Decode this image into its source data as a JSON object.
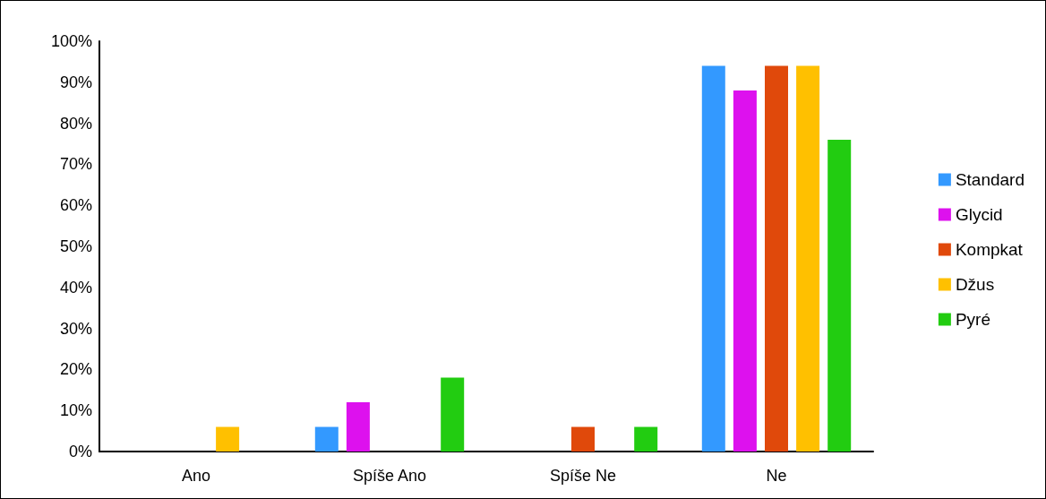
{
  "chart_data": {
    "type": "bar",
    "categories": [
      "Ano",
      "Spíše Ano",
      "Spíše Ne",
      "Ne"
    ],
    "series": [
      {
        "name": "Standard",
        "color": "#3399ff",
        "values": [
          0,
          6,
          0,
          94
        ]
      },
      {
        "name": "Glycid",
        "color": "#dd11ee",
        "values": [
          0,
          12,
          0,
          88
        ]
      },
      {
        "name": "Kompkat",
        "color": "#e0490b",
        "values": [
          0,
          0,
          6,
          94
        ]
      },
      {
        "name": "Džus",
        "color": "#ffc000",
        "values": [
          6,
          0,
          0,
          94
        ]
      },
      {
        "name": "Pyré",
        "color": "#22cc11",
        "values": [
          0,
          18,
          6,
          76
        ]
      }
    ],
    "ylim": [
      0,
      100
    ],
    "yticks": [
      {
        "value": 0,
        "label": "0%"
      },
      {
        "value": 10,
        "label": "10%"
      },
      {
        "value": 20,
        "label": "20%"
      },
      {
        "value": 30,
        "label": "30%"
      },
      {
        "value": 40,
        "label": "40%"
      },
      {
        "value": 50,
        "label": "50%"
      },
      {
        "value": 60,
        "label": "60%"
      },
      {
        "value": 70,
        "label": "70%"
      },
      {
        "value": 80,
        "label": "80%"
      },
      {
        "value": 90,
        "label": "90%"
      },
      {
        "value": 100,
        "label": "100%"
      }
    ],
    "grid": false,
    "legend": "right"
  }
}
